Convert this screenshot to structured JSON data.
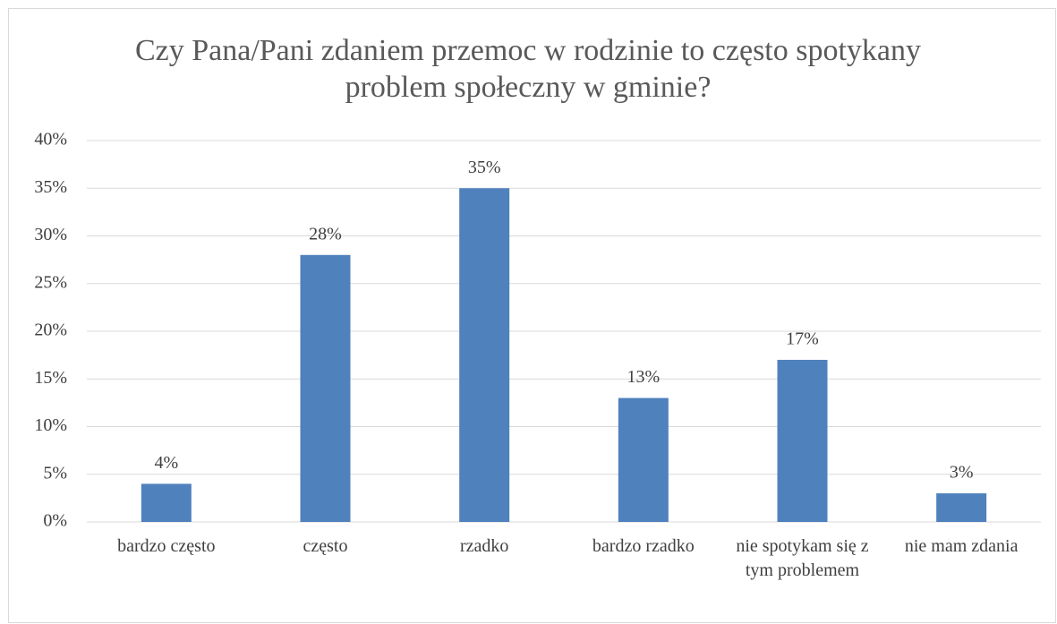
{
  "chart_data": {
    "type": "bar",
    "title": "Czy Pana/Pani zdaniem przemoc w rodzinie to często spotykany problem społeczny w gminie?",
    "categories": [
      "bardzo często",
      "często",
      "rzadko",
      "bardzo rzadko",
      "nie spotykam się z tym problemem",
      "nie mam zdania"
    ],
    "values": [
      4,
      28,
      35,
      13,
      17,
      3
    ],
    "value_labels": [
      "4%",
      "28%",
      "35%",
      "13%",
      "17%",
      "3%"
    ],
    "color": "#4f81bd",
    "ylim": [
      0,
      40
    ],
    "yticks": [
      {
        "value": 0,
        "label": "0%"
      },
      {
        "value": 5,
        "label": "5%"
      },
      {
        "value": 10,
        "label": "10%"
      },
      {
        "value": 15,
        "label": "15%"
      },
      {
        "value": 20,
        "label": "20%"
      },
      {
        "value": 25,
        "label": "25%"
      },
      {
        "value": 30,
        "label": "30%"
      },
      {
        "value": 35,
        "label": "35%"
      },
      {
        "value": 40,
        "label": "40%"
      }
    ],
    "grid": true
  }
}
